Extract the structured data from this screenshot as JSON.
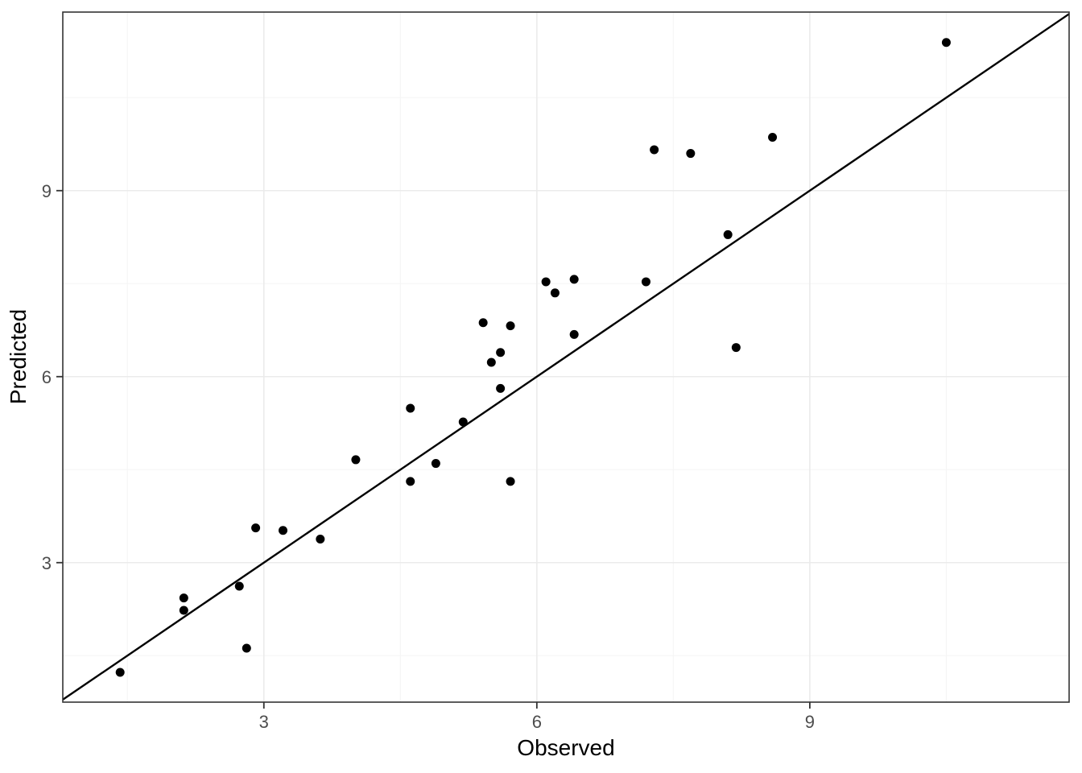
{
  "chart_data": {
    "type": "scatter",
    "title": "",
    "xlabel": "Observed",
    "ylabel": "Predicted",
    "xlim": [
      0.79,
      11.85
    ],
    "ylim": [
      0.75,
      11.88
    ],
    "x_major_ticks": [
      3,
      6,
      9
    ],
    "y_major_ticks": [
      3,
      6,
      9
    ],
    "x_minor_ticks": [
      1.5,
      4.5,
      7.5,
      10.5
    ],
    "y_minor_ticks": [
      1.5,
      4.5,
      7.5,
      10.5
    ],
    "x_tick_labels": [
      "3",
      "6",
      "9"
    ],
    "y_tick_labels": [
      "3",
      "6",
      "9"
    ],
    "grid": true,
    "legend_position": "none",
    "reference_line": {
      "name": "identity-line",
      "slope": 1,
      "intercept": 0
    },
    "series": [
      {
        "name": "predictions",
        "marker": "filled-circle",
        "points": [
          [
            1.42,
            1.23
          ],
          [
            2.12,
            2.43
          ],
          [
            2.12,
            2.23
          ],
          [
            2.73,
            2.62
          ],
          [
            2.81,
            1.62
          ],
          [
            2.91,
            3.56
          ],
          [
            3.21,
            3.52
          ],
          [
            3.62,
            3.38
          ],
          [
            4.01,
            4.66
          ],
          [
            4.61,
            5.49
          ],
          [
            4.61,
            4.31
          ],
          [
            4.89,
            4.6
          ],
          [
            5.19,
            5.27
          ],
          [
            5.41,
            6.87
          ],
          [
            5.5,
            6.23
          ],
          [
            5.6,
            6.39
          ],
          [
            5.6,
            5.81
          ],
          [
            5.71,
            6.82
          ],
          [
            5.71,
            4.31
          ],
          [
            6.1,
            7.53
          ],
          [
            6.2,
            7.35
          ],
          [
            6.41,
            7.57
          ],
          [
            6.41,
            6.68
          ],
          [
            7.2,
            7.53
          ],
          [
            7.29,
            9.66
          ],
          [
            7.69,
            9.6
          ],
          [
            8.1,
            8.29
          ],
          [
            8.19,
            6.47
          ],
          [
            8.59,
            9.86
          ],
          [
            10.5,
            11.39
          ]
        ]
      }
    ]
  },
  "colors": {
    "background": "#ffffff",
    "panel_background": "#ffffff",
    "grid_major": "#ebebeb",
    "grid_minor": "#f5f5f5",
    "panel_border": "#333333",
    "tick_mark": "#333333",
    "tick_label": "#4d4d4d",
    "axis_title": "#000000",
    "point": "#000000",
    "reference_line": "#000000"
  }
}
